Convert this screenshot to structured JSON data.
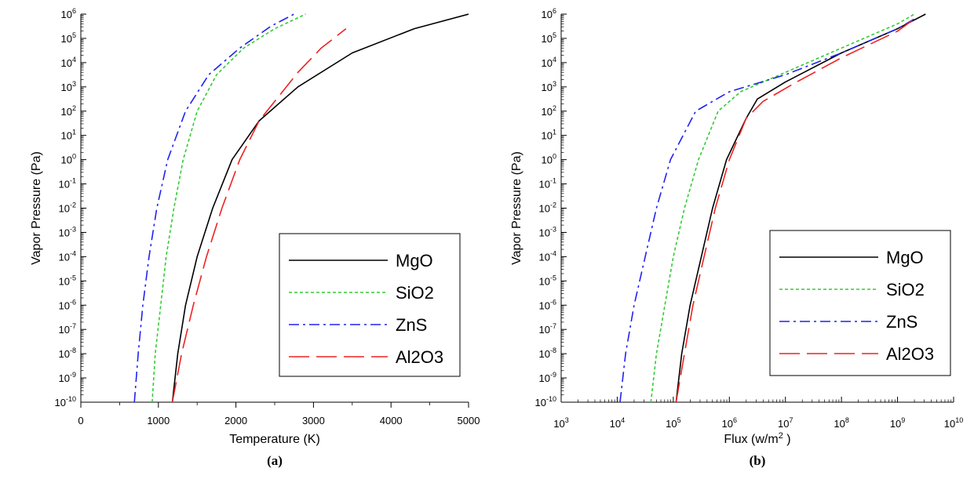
{
  "chart_data": [
    {
      "type": "line",
      "panel_label": "(a)",
      "xlabel": "Temperature (K)",
      "ylabel": "Vapor Pressure (Pa)",
      "xscale": "linear",
      "yscale": "log",
      "xlim": [
        0,
        5000
      ],
      "ylim_exp": [
        -10,
        6
      ],
      "x_ticks": [
        0,
        1000,
        2000,
        3000,
        4000,
        5000
      ],
      "x_tick_labels": [
        "0",
        "1000",
        "2000",
        "3000",
        "4000",
        "5000"
      ],
      "legend_position": "lower-right",
      "series": [
        {
          "name": "MgO",
          "color": "#000000",
          "dash": "solid",
          "points": [
            [
              1180,
              -10
            ],
            [
              1250,
              -8
            ],
            [
              1350,
              -6
            ],
            [
              1500,
              -4
            ],
            [
              1700,
              -2
            ],
            [
              1950,
              0
            ],
            [
              2300,
              1.6
            ],
            [
              2800,
              3
            ],
            [
              3500,
              4.4
            ],
            [
              4300,
              5.4
            ],
            [
              5000,
              6
            ]
          ]
        },
        {
          "name": "SiO2",
          "color": "#33cc33",
          "dash": "short",
          "points": [
            [
              920,
              -10
            ],
            [
              960,
              -8
            ],
            [
              1030,
              -6
            ],
            [
              1100,
              -4
            ],
            [
              1200,
              -2
            ],
            [
              1320,
              0
            ],
            [
              1500,
              2
            ],
            [
              1750,
              3.5
            ],
            [
              2100,
              4.6
            ],
            [
              2500,
              5.4
            ],
            [
              2900,
              6
            ]
          ]
        },
        {
          "name": "ZnS",
          "color": "#2222ee",
          "dash": "dashdot",
          "points": [
            [
              690,
              -10
            ],
            [
              740,
              -8
            ],
            [
              800,
              -6
            ],
            [
              880,
              -4
            ],
            [
              980,
              -2
            ],
            [
              1120,
              0
            ],
            [
              1350,
              2
            ],
            [
              1650,
              3.5
            ],
            [
              2050,
              4.6
            ],
            [
              2450,
              5.5
            ],
            [
              2750,
              6
            ]
          ]
        },
        {
          "name": "Al2O3",
          "color": "#ee2222",
          "dash": "long",
          "points": [
            [
              1180,
              -10
            ],
            [
              1300,
              -8
            ],
            [
              1450,
              -6
            ],
            [
              1620,
              -4
            ],
            [
              1820,
              -2
            ],
            [
              2050,
              0
            ],
            [
              2300,
              1.6
            ],
            [
              2550,
              2.6
            ],
            [
              2800,
              3.6
            ],
            [
              3100,
              4.6
            ],
            [
              3420,
              5.4
            ]
          ]
        }
      ]
    },
    {
      "type": "line",
      "panel_label": "(b)",
      "xlabel": "Flux (w/m",
      "xlabel_superscript": "2",
      "xlabel_suffix": ")",
      "ylabel": "Vapor Pressure (Pa)",
      "xscale": "log",
      "yscale": "log",
      "xlim_exp": [
        3,
        10
      ],
      "ylim_exp": [
        -10,
        6
      ],
      "legend_position": "lower-right",
      "series": [
        {
          "name": "MgO",
          "color": "#000000",
          "dash": "solid",
          "points": [
            [
              5.05,
              -10
            ],
            [
              5.15,
              -8
            ],
            [
              5.3,
              -6
            ],
            [
              5.5,
              -4
            ],
            [
              5.7,
              -2
            ],
            [
              5.95,
              0
            ],
            [
              6.3,
              1.7
            ],
            [
              6.5,
              2.5
            ],
            [
              7.0,
              3.2
            ],
            [
              8.0,
              4.4
            ],
            [
              9.0,
              5.4
            ],
            [
              9.5,
              6
            ]
          ]
        },
        {
          "name": "SiO2",
          "color": "#33cc33",
          "dash": "short",
          "points": [
            [
              4.6,
              -10
            ],
            [
              4.7,
              -8
            ],
            [
              4.85,
              -6
            ],
            [
              5.0,
              -4
            ],
            [
              5.2,
              -2
            ],
            [
              5.45,
              0
            ],
            [
              5.8,
              2
            ],
            [
              6.2,
              2.8
            ],
            [
              7.0,
              3.6
            ],
            [
              8.0,
              4.6
            ],
            [
              9.0,
              5.6
            ],
            [
              9.3,
              6
            ]
          ]
        },
        {
          "name": "ZnS",
          "color": "#2222ee",
          "dash": "dashdot",
          "points": [
            [
              4.05,
              -10
            ],
            [
              4.15,
              -8
            ],
            [
              4.3,
              -6
            ],
            [
              4.5,
              -4
            ],
            [
              4.7,
              -2
            ],
            [
              4.95,
              0
            ],
            [
              5.4,
              2
            ],
            [
              6.0,
              2.8
            ],
            [
              7.0,
              3.5
            ],
            [
              8.0,
              4.4
            ],
            [
              9.0,
              5.4
            ],
            [
              9.3,
              5.8
            ]
          ]
        },
        {
          "name": "Al2O3",
          "color": "#ee2222",
          "dash": "long",
          "points": [
            [
              5.05,
              -10
            ],
            [
              5.2,
              -8
            ],
            [
              5.35,
              -6
            ],
            [
              5.55,
              -4
            ],
            [
              5.75,
              -2
            ],
            [
              6.0,
              0
            ],
            [
              6.3,
              1.7
            ],
            [
              6.6,
              2.4
            ],
            [
              7.2,
              3.2
            ],
            [
              8.0,
              4.2
            ],
            [
              9.0,
              5.3
            ],
            [
              9.3,
              5.8
            ]
          ]
        }
      ]
    }
  ]
}
